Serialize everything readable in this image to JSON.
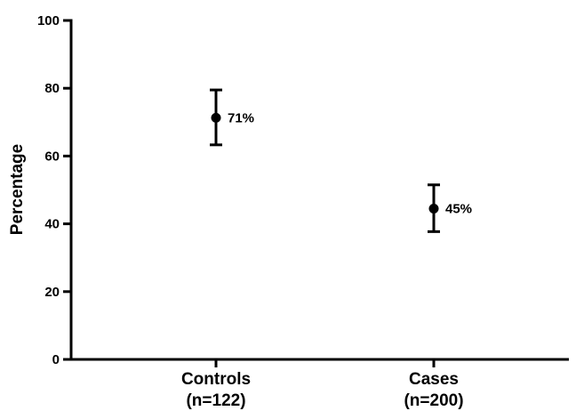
{
  "chart_data": {
    "type": "scatter",
    "ylabel": "Percentage",
    "ylim": [
      0,
      100
    ],
    "yticks": [
      0,
      20,
      40,
      60,
      80,
      100
    ],
    "grid": false,
    "categories": [
      {
        "label_line1": "Controls",
        "label_line2": "(n=122)"
      },
      {
        "label_line1": "Cases",
        "label_line2": "(n=200)"
      }
    ],
    "points": [
      {
        "value": 71.3,
        "error_low": 63.3,
        "error_high": 79.5,
        "label": "71%"
      },
      {
        "value": 44.5,
        "error_low": 37.7,
        "error_high": 51.5,
        "label": "45%"
      }
    ],
    "colors": {
      "marker": "#000000",
      "axis": "#000000"
    }
  }
}
